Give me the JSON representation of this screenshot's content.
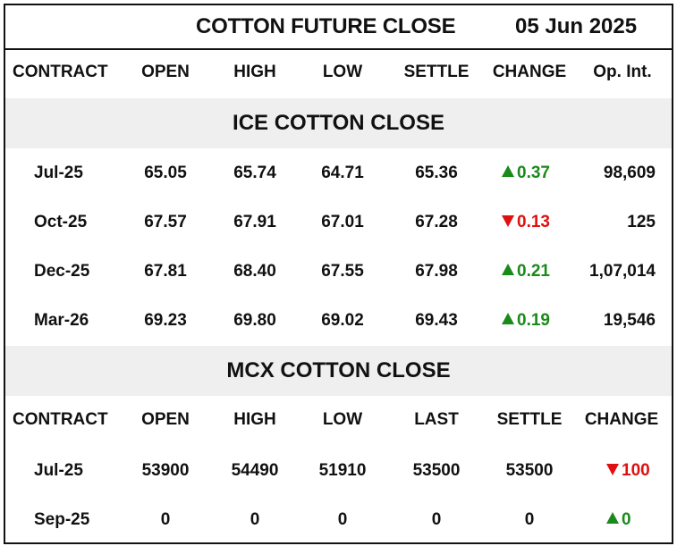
{
  "title": "COTTON FUTURE CLOSE",
  "date": "05 Jun 2025",
  "ice": {
    "headers": [
      "CONTRACT",
      "OPEN",
      "HIGH",
      "LOW",
      "SETTLE",
      "CHANGE",
      "Op. Int."
    ],
    "section_label": "ICE COTTON CLOSE",
    "rows": [
      {
        "contract": "Jul-25",
        "open": "65.05",
        "high": "65.74",
        "low": "64.71",
        "settle": "65.36",
        "change": "0.37",
        "direction": "up",
        "op_int": "98,609"
      },
      {
        "contract": "Oct-25",
        "open": "67.57",
        "high": "67.91",
        "low": "67.01",
        "settle": "67.28",
        "change": "0.13",
        "direction": "down",
        "op_int": "125"
      },
      {
        "contract": "Dec-25",
        "open": "67.81",
        "high": "68.40",
        "low": "67.55",
        "settle": "67.98",
        "change": "0.21",
        "direction": "up",
        "op_int": "1,07,014"
      },
      {
        "contract": "Mar-26",
        "open": "69.23",
        "high": "69.80",
        "low": "69.02",
        "settle": "69.43",
        "change": "0.19",
        "direction": "up",
        "op_int": "19,546"
      }
    ]
  },
  "mcx": {
    "section_label": "MCX COTTON CLOSE",
    "headers": [
      "CONTRACT",
      "OPEN",
      "HIGH",
      "LOW",
      "LAST",
      "SETTLE",
      "CHANGE"
    ],
    "rows": [
      {
        "contract": "Jul-25",
        "open": "53900",
        "high": "54490",
        "low": "51910",
        "last": "53500",
        "settle": "53500",
        "change": "100",
        "direction": "down"
      },
      {
        "contract": "Sep-25",
        "open": "0",
        "high": "0",
        "low": "0",
        "last": "0",
        "settle": "0",
        "change": "0",
        "direction": "up"
      }
    ]
  },
  "colors": {
    "up": "#1a8a1a",
    "down": "#e01010",
    "band": "#efefef"
  }
}
